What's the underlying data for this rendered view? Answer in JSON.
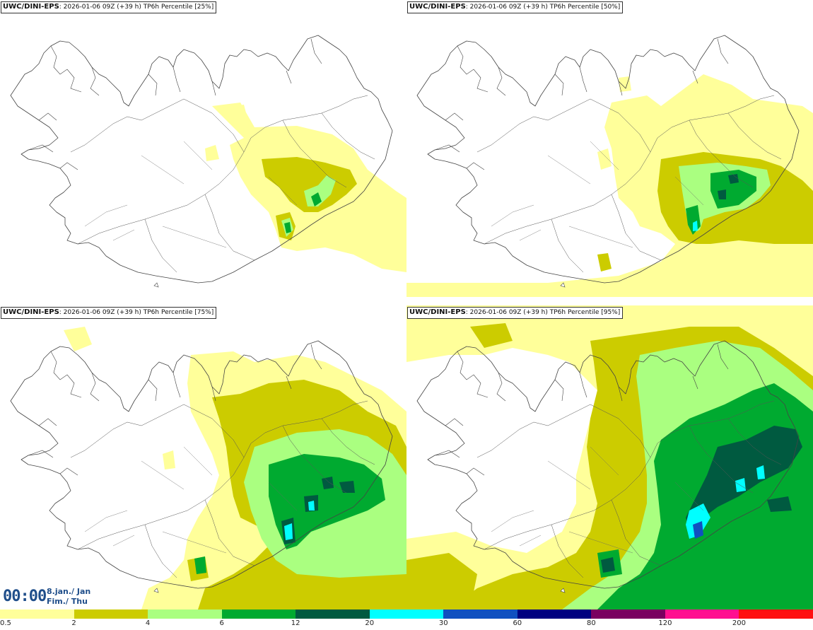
{
  "panels": [
    {
      "model": "UWC/DINI-EPS",
      "info": ": 2026-01-06 09Z (+39 h) TP6h Percentile [25%]"
    },
    {
      "model": "UWC/DINI-EPS",
      "info": ": 2026-01-06 09Z (+39 h) TP6h Percentile [50%]"
    },
    {
      "model": "UWC/DINI-EPS",
      "info": ": 2026-01-06 09Z (+39 h) TP6h Percentile [75%]"
    },
    {
      "model": "UWC/DINI-EPS",
      "info": ": 2026-01-06 09Z (+39 h) TP6h Percentile [95%]"
    }
  ],
  "valid": {
    "time": "00:00",
    "date_line1": "8.jan./ Jan",
    "date_line2": "Fim./ Thu"
  },
  "colorbar": {
    "labels": [
      "0.5",
      "2",
      "4",
      "6",
      "12",
      "20",
      "30",
      "60",
      "80",
      "120",
      "200"
    ],
    "colors": [
      "#ffff9a",
      "#cccc00",
      "#aaff80",
      "#00aa30",
      "#005a40",
      "#00ffff",
      "#1050c0",
      "#000080",
      "#7a0060",
      "#ff1090",
      "#ff1010"
    ]
  },
  "colors": {
    "c05": "#ffff9a",
    "c2": "#cccc00",
    "c4": "#aaff80",
    "c6": "#00aa30",
    "c12": "#005a40",
    "c20": "#00ffff",
    "c30": "#1050c0"
  }
}
